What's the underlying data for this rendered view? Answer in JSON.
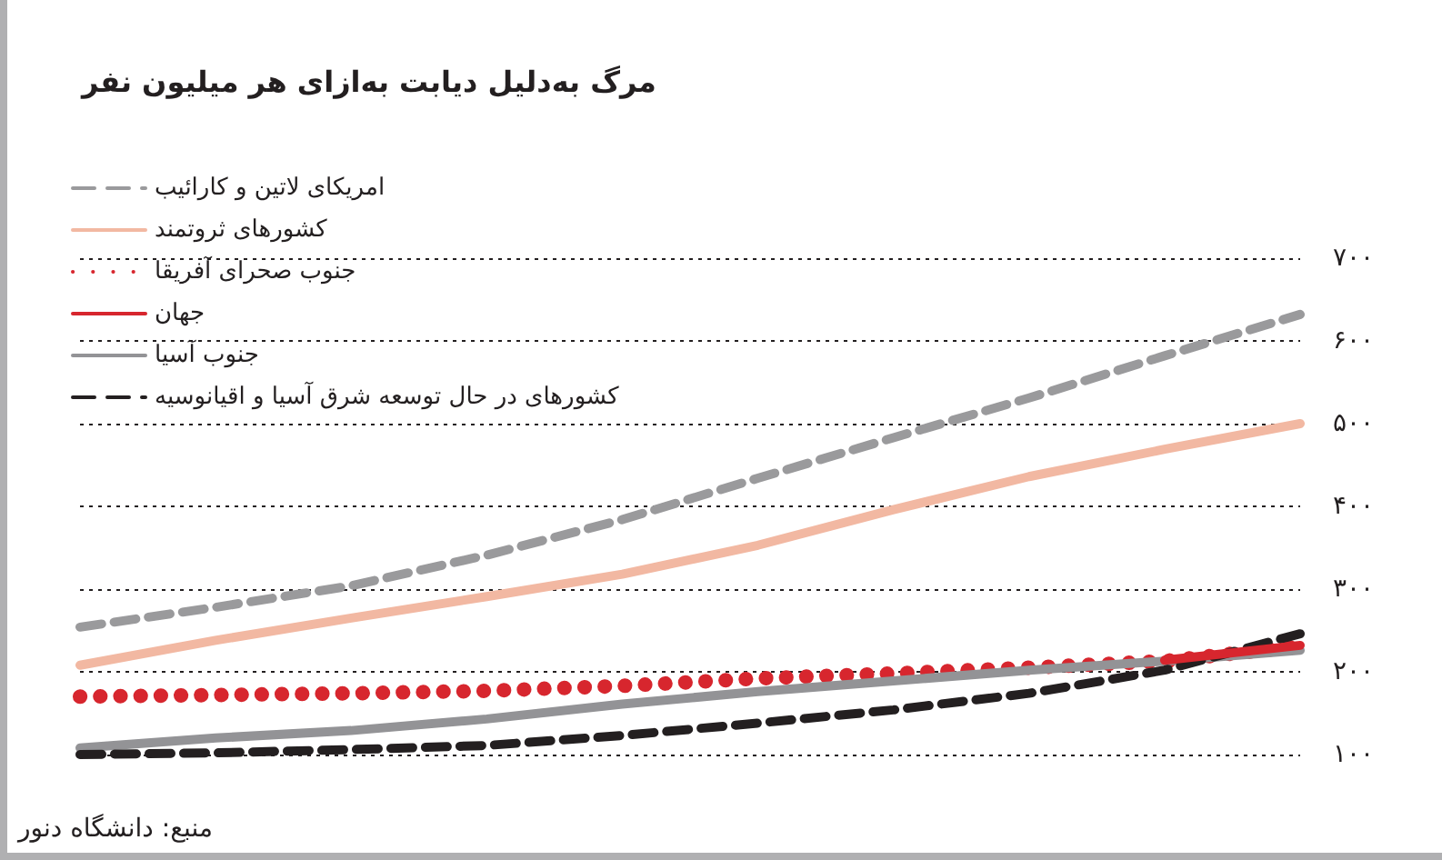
{
  "chart_data": {
    "type": "line",
    "title": "مرگ به‌دلیل دیابت به‌ازای هر میلیون نفر",
    "annotations": [
      "منبع: دانشگاه دنور"
    ],
    "categories": [
      null,
      null,
      null,
      null,
      null,
      null,
      null,
      null,
      null,
      null
    ],
    "series": [
      {
        "name": "امریکای لاتین و کارائیب",
        "color": "#9a9a9c",
        "line_style": "dashed",
        "values": [
          254,
          278,
          304,
          341,
          384,
          434,
          483,
          531,
          582,
          632
        ]
      },
      {
        "name": "کشورهای ثروتمند",
        "color": "#f2b8a2",
        "line_style": "solid",
        "values": [
          208,
          238,
          265,
          291,
          318,
          353,
          396,
          436,
          469,
          500
        ]
      },
      {
        "name": "جنوب صحرای آفریقا",
        "color": "#d7262e",
        "line_style": "dotted",
        "values": [
          170,
          172,
          174,
          177,
          183,
          192,
          198,
          205,
          213,
          231
        ]
      },
      {
        "name": "جهان",
        "color": "#d7262e",
        "line_style": "solid",
        "values": [
          null,
          null,
          null,
          null,
          null,
          null,
          null,
          null,
          214,
          232
        ]
      },
      {
        "name": "جنوب آسیا",
        "color": "#939396",
        "line_style": "solid",
        "values": [
          108,
          120,
          129,
          143,
          161,
          176,
          189,
          202,
          213,
          226
        ]
      },
      {
        "name": "کشورهای در حال توسعه شرق آسیا و اقیانوسیه",
        "color": "#231f20",
        "line_style": "dashed",
        "values": [
          100,
          102,
          106,
          111,
          123,
          138,
          154,
          174,
          202,
          246
        ]
      }
    ],
    "ylim": [
      100,
      700
    ],
    "yticks": [
      {
        "value": 100,
        "label": "۱۰۰"
      },
      {
        "value": 200,
        "label": "۲۰۰"
      },
      {
        "value": 300,
        "label": "۳۰۰"
      },
      {
        "value": 400,
        "label": "۴۰۰"
      },
      {
        "value": 500,
        "label": "۵۰۰"
      },
      {
        "value": 600,
        "label": "۶۰۰"
      },
      {
        "value": 700,
        "label": "۷۰۰"
      }
    ],
    "grid": "y",
    "legend": "top left",
    "marker": "none",
    "tick_labels": "y"
  }
}
